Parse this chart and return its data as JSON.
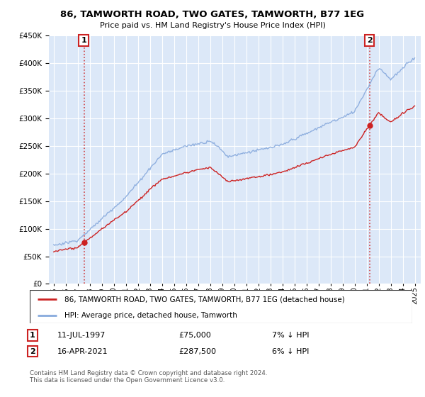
{
  "title": "86, TAMWORTH ROAD, TWO GATES, TAMWORTH, B77 1EG",
  "subtitle": "Price paid vs. HM Land Registry's House Price Index (HPI)",
  "legend_line1": "86, TAMWORTH ROAD, TWO GATES, TAMWORTH, B77 1EG (detached house)",
  "legend_line2": "HPI: Average price, detached house, Tamworth",
  "annotation1_label": "1",
  "annotation1_date": "11-JUL-1997",
  "annotation1_price": "£75,000",
  "annotation1_hpi": "7% ↓ HPI",
  "annotation1_year": 1997.54,
  "annotation1_value": 75000,
  "annotation2_label": "2",
  "annotation2_date": "16-APR-2021",
  "annotation2_price": "£287,500",
  "annotation2_hpi": "6% ↓ HPI",
  "annotation2_year": 2021.29,
  "annotation2_value": 287500,
  "footer": "Contains HM Land Registry data © Crown copyright and database right 2024.\nThis data is licensed under the Open Government Licence v3.0.",
  "background_color": "#ffffff",
  "plot_bg_color": "#dce8f8",
  "grid_color": "#ffffff",
  "red_color": "#cc2222",
  "blue_color": "#88aadd",
  "ylim": [
    0,
    450000
  ],
  "xlim_start": 1994.6,
  "xlim_end": 2025.5,
  "yticks": [
    0,
    50000,
    100000,
    150000,
    200000,
    250000,
    300000,
    350000,
    400000,
    450000
  ],
  "xticks_start": 1995,
  "xticks_end": 2025
}
